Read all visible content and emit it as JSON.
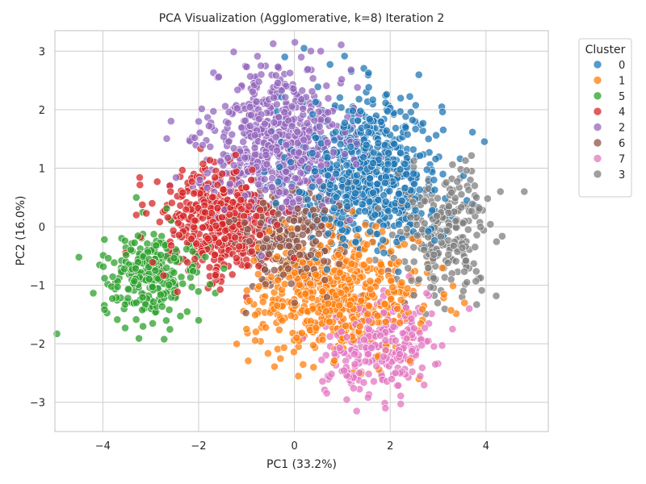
{
  "chart_data": {
    "type": "scatter",
    "title": "PCA Visualization (Agglomerative, k=8) Iteration 2",
    "xlabel": "PC1 (33.2%)",
    "ylabel": "PC2 (16.0%)",
    "xlim": [
      -5.0,
      5.3
    ],
    "ylim": [
      -3.5,
      3.35
    ],
    "xticks": [
      -4,
      -2,
      0,
      2,
      4
    ],
    "yticks": [
      -3,
      -2,
      -1,
      0,
      1,
      2,
      3
    ],
    "xtick_labels": [
      "−4",
      "−2",
      "0",
      "2",
      "4"
    ],
    "ytick_labels": [
      "−3",
      "−2",
      "−1",
      "0",
      "1",
      "2",
      "3"
    ],
    "grid": true,
    "legend": {
      "title": "Cluster",
      "placement": "outside-top-right",
      "entries": [
        "0",
        "1",
        "5",
        "4",
        "2",
        "6",
        "7",
        "3"
      ]
    },
    "series": [
      {
        "name": "0",
        "color": "#1f77b4",
        "count": 700,
        "center": [
          1.55,
          0.95
        ],
        "spread": [
          0.75,
          0.65
        ],
        "points": [
          [
            0.2,
            3.05
          ],
          [
            -0.2,
            2.9
          ],
          [
            1.5,
            2.3
          ],
          [
            2.8,
            1.5
          ],
          [
            3.1,
            0.9
          ],
          [
            3.6,
            0.45
          ],
          [
            0.5,
            -0.3
          ]
        ]
      },
      {
        "name": "1",
        "color": "#ff7f0e",
        "count": 600,
        "center": [
          0.9,
          -1.15
        ],
        "spread": [
          0.85,
          0.5
        ],
        "points": [
          [
            -1.0,
            -1.75
          ],
          [
            -0.35,
            -1.5
          ],
          [
            0.4,
            -2.4
          ],
          [
            2.6,
            -2.6
          ],
          [
            3.55,
            -1.3
          ],
          [
            2.3,
            -0.3
          ]
        ]
      },
      {
        "name": "5",
        "color": "#2ca02c",
        "count": 260,
        "center": [
          -3.0,
          -0.85
        ],
        "spread": [
          0.5,
          0.35
        ],
        "points": [
          [
            -4.5,
            -0.52
          ],
          [
            -3.9,
            -0.98
          ],
          [
            -2.0,
            -1.6
          ],
          [
            -3.3,
            0.5
          ],
          [
            -2.2,
            -0.3
          ]
        ]
      },
      {
        "name": "4",
        "color": "#d62728",
        "count": 450,
        "center": [
          -1.6,
          0.05
        ],
        "spread": [
          0.6,
          0.5
        ],
        "points": [
          [
            -2.6,
            0.7
          ],
          [
            -3.3,
            0.2
          ],
          [
            -1.0,
            -1.2
          ],
          [
            -0.9,
            0.8
          ],
          [
            -2.1,
            0.9
          ]
        ]
      },
      {
        "name": "2",
        "color": "#9467bd",
        "count": 650,
        "center": [
          -0.35,
          1.45
        ],
        "spread": [
          0.7,
          0.6
        ],
        "points": [
          [
            -1.6,
            2.55
          ],
          [
            -0.7,
            2.75
          ],
          [
            0.55,
            3.0
          ],
          [
            -2.0,
            1.8
          ],
          [
            -2.6,
            0.7
          ]
        ]
      },
      {
        "name": "6",
        "color": "#8c564b",
        "count": 280,
        "center": [
          -0.1,
          -0.15
        ],
        "spread": [
          0.55,
          0.45
        ],
        "points": [
          [
            -0.8,
            0.8
          ],
          [
            0.5,
            0.3
          ],
          [
            2.3,
            -1.3
          ],
          [
            -0.5,
            -1.0
          ]
        ]
      },
      {
        "name": "7",
        "color": "#e377c2",
        "count": 260,
        "center": [
          1.7,
          -2.05
        ],
        "spread": [
          0.55,
          0.4
        ],
        "points": [
          [
            1.3,
            -3.15
          ],
          [
            1.9,
            -3.1
          ],
          [
            3.65,
            -1.4
          ],
          [
            3.3,
            -1.75
          ],
          [
            0.7,
            -2.55
          ]
        ]
      },
      {
        "name": "3",
        "color": "#7f7f7f",
        "count": 260,
        "center": [
          3.15,
          -0.1
        ],
        "spread": [
          0.5,
          0.5
        ],
        "points": [
          [
            4.8,
            0.6
          ],
          [
            4.3,
            0.6
          ],
          [
            3.8,
            0.5
          ],
          [
            3.6,
            -0.95
          ],
          [
            2.6,
            -0.9
          ],
          [
            3.7,
            0.95
          ]
        ]
      }
    ]
  }
}
